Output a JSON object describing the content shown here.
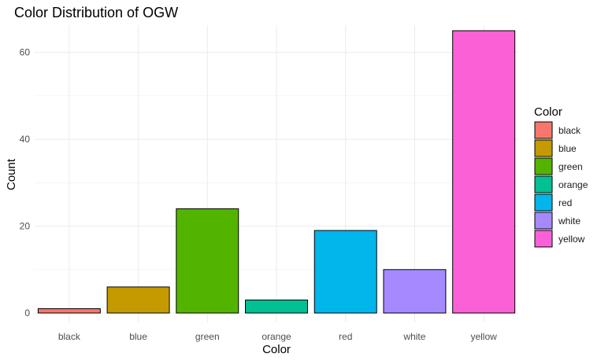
{
  "chart_data": {
    "type": "bar",
    "title": "Color Distribution of OGW",
    "xlabel": "Color",
    "ylabel": "Count",
    "categories": [
      "black",
      "blue",
      "green",
      "orange",
      "red",
      "white",
      "yellow"
    ],
    "values": [
      1,
      6,
      24,
      3,
      19,
      10,
      65
    ],
    "colors": [
      "#F8766D",
      "#C49A00",
      "#53B400",
      "#00C094",
      "#00B6EB",
      "#A58AFF",
      "#FB61D7"
    ],
    "ylim": [
      0,
      67
    ],
    "yticks": [
      0,
      20,
      40,
      60
    ],
    "grid": true,
    "legend": {
      "title": "Color",
      "placement": "right",
      "entries": [
        "black",
        "blue",
        "green",
        "orange",
        "red",
        "white",
        "yellow"
      ]
    }
  }
}
